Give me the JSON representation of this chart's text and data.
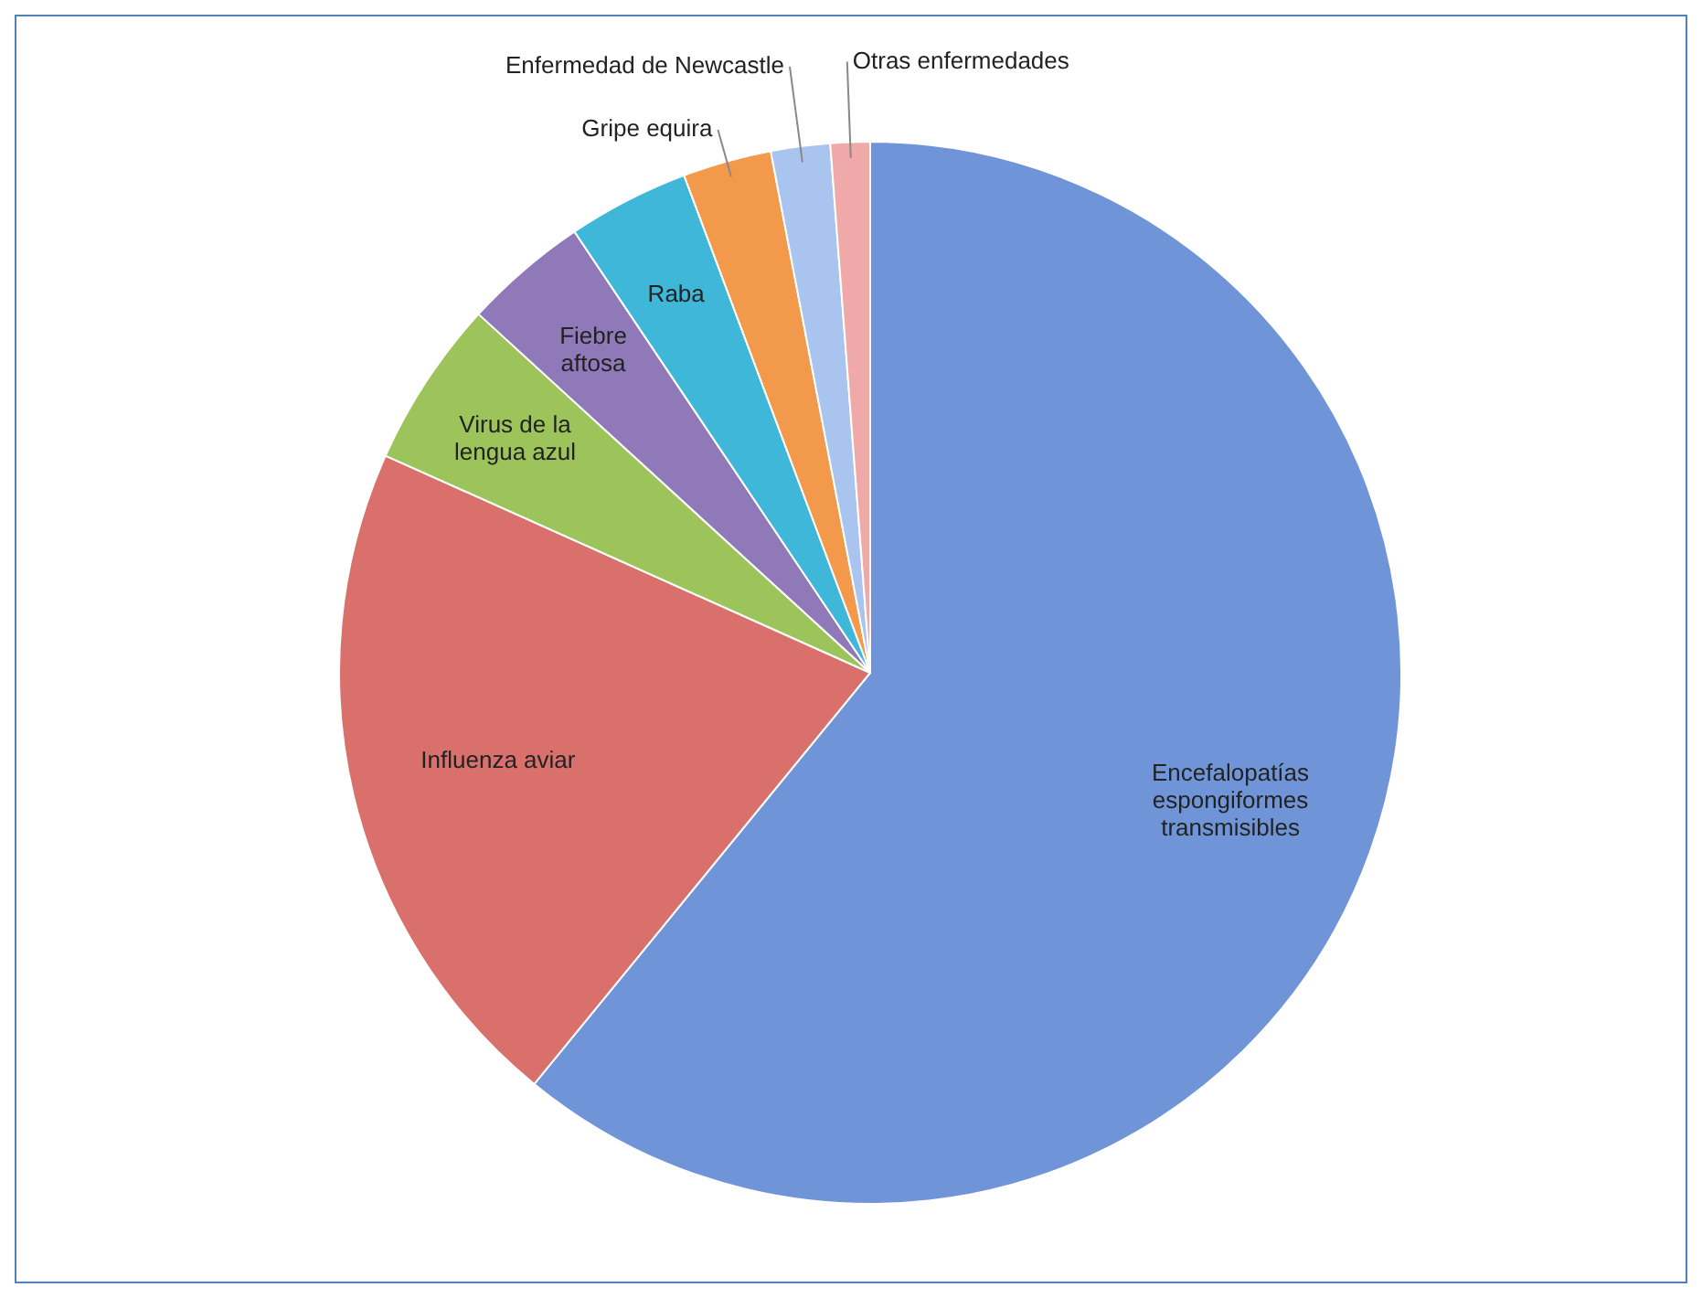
{
  "chart_data": {
    "type": "pie",
    "categories": [
      "Encefalopatías espongiformes transmisibles",
      "Influenza aviar",
      "Virus de la lengua azul",
      "Fiebre aftosa",
      "Raba",
      "Gripe equira",
      "Enfermedad de Newcastle",
      "Otras enfermedades"
    ],
    "values": [
      60.9,
      20.8,
      5.1,
      3.8,
      3.7,
      2.7,
      1.8,
      1.2
    ],
    "colors": [
      "#6f95d8",
      "#d9706c",
      "#9dc45a",
      "#9079b8",
      "#3eb7d8",
      "#f3994c",
      "#a9c4ef",
      "#f0a9a9"
    ],
    "legend": false
  }
}
